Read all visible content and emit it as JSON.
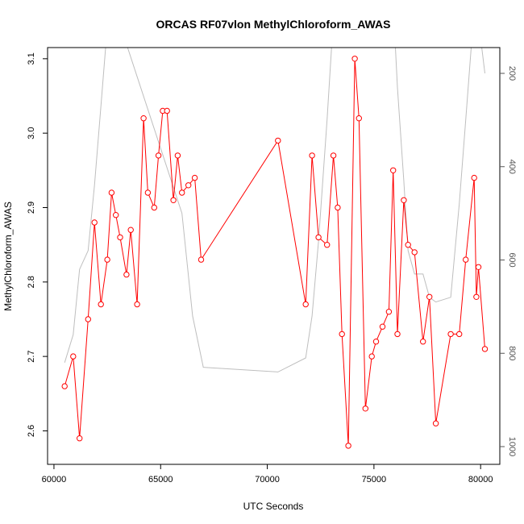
{
  "chart_data": {
    "type": "line",
    "title": "ORCAS RF07vlon MethylChloroform_AWAS",
    "xlabel": "UTC Seconds",
    "ylabel": "MethylChloroform_AWAS",
    "xlim": [
      59700,
      80900
    ],
    "ylim": [
      2.555,
      3.115
    ],
    "x_ticks": [
      60000,
      65000,
      70000,
      75000,
      80000
    ],
    "y_ticks": [
      2.6,
      2.7,
      2.8,
      2.9,
      3.0,
      3.1
    ],
    "y2_ticks": [
      200,
      400,
      600,
      800,
      1000
    ],
    "y2_reversed": true,
    "grid": false,
    "colors": {
      "primary": "#ff0000",
      "secondary": "#bebebe"
    },
    "series": [
      {
        "x": [
          60500,
          60900,
          61200,
          61600,
          61900,
          62200,
          62500,
          62700,
          62900,
          63100,
          63400,
          63600,
          63900,
          64200,
          64400,
          64700,
          64900,
          65100,
          65300,
          65600,
          65800,
          66000,
          66300,
          66600,
          66900,
          70500,
          71800,
          72100,
          72400,
          72800,
          73100,
          73300,
          73500,
          73800,
          74100,
          74300,
          74600,
          74900,
          75100,
          75400,
          75700,
          75900,
          76100,
          76400,
          76600,
          76900,
          77300,
          77600,
          77900,
          78600,
          79000,
          79300,
          79700,
          79800,
          79900,
          80200
        ],
        "values": [
          2.66,
          2.7,
          2.59,
          2.75,
          2.88,
          2.77,
          2.83,
          2.92,
          2.89,
          2.86,
          2.81,
          2.87,
          2.77,
          3.02,
          2.92,
          2.9,
          2.97,
          3.03,
          3.03,
          2.91,
          2.97,
          2.92,
          2.93,
          2.94,
          2.83,
          2.99,
          2.77,
          2.97,
          2.86,
          2.85,
          2.97,
          2.9,
          2.73,
          2.58,
          3.1,
          3.02,
          2.63,
          2.7,
          2.72,
          2.74,
          2.76,
          2.95,
          2.73,
          2.91,
          2.85,
          2.84,
          2.72,
          2.78,
          2.61,
          2.73,
          2.73,
          2.83,
          2.94,
          2.78,
          2.82,
          2.71
        ]
      },
      {
        "axis": "right",
        "x": [
          60500,
          60900,
          61200,
          61600,
          61900,
          62200,
          62500,
          62700,
          66000,
          66500,
          67000,
          70500,
          71800,
          72100,
          72400,
          72800,
          73100,
          73300,
          75700,
          75900,
          76100,
          76400,
          76600,
          76900,
          77300,
          77600,
          77900,
          78600,
          79000,
          79300,
          79700,
          79800,
          80200
        ],
        "values": [
          820,
          760,
          620,
          580,
          440,
          270,
          100,
          40,
          500,
          720,
          830,
          840,
          810,
          720,
          560,
          300,
          80,
          -80,
          -80,
          50,
          230,
          430,
          580,
          630,
          630,
          680,
          690,
          680,
          480,
          300,
          60,
          50,
          200
        ]
      }
    ]
  }
}
